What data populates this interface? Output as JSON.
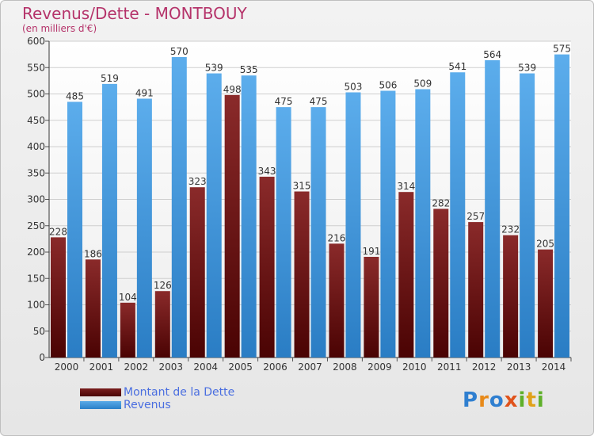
{
  "chart_data": {
    "type": "bar",
    "title": "Revenus/Dette - MONTBOUY",
    "subtitle": "(en milliers d'€)",
    "categories": [
      "2000",
      "2001",
      "2002",
      "2003",
      "2004",
      "2005",
      "2006",
      "2007",
      "2008",
      "2009",
      "2010",
      "2011",
      "2012",
      "2013",
      "2014"
    ],
    "series": [
      {
        "name": "Montant de la Dette",
        "color": "#6b1414",
        "values": [
          228,
          186,
          104,
          126,
          323,
          498,
          343,
          315,
          216,
          191,
          314,
          282,
          257,
          232,
          205
        ]
      },
      {
        "name": "Revenus",
        "color": "#4a9fe3",
        "values": [
          485,
          519,
          491,
          570,
          539,
          535,
          475,
          475,
          503,
          506,
          509,
          541,
          564,
          539,
          575
        ]
      }
    ],
    "ylim": [
      0,
      600
    ],
    "yticks": [
      0,
      50,
      100,
      150,
      200,
      250,
      300,
      350,
      400,
      450,
      500,
      550,
      600
    ],
    "grid": true,
    "legend_position": "bottom-left"
  },
  "logo": {
    "letters": [
      "P",
      "r",
      "o",
      "x",
      "i",
      "t",
      "i"
    ],
    "colors": [
      "#2f7fd0",
      "#e88a1a",
      "#2f7fd0",
      "#e0531c",
      "#5fb02a",
      "#e0a21a",
      "#5fb02a"
    ]
  }
}
